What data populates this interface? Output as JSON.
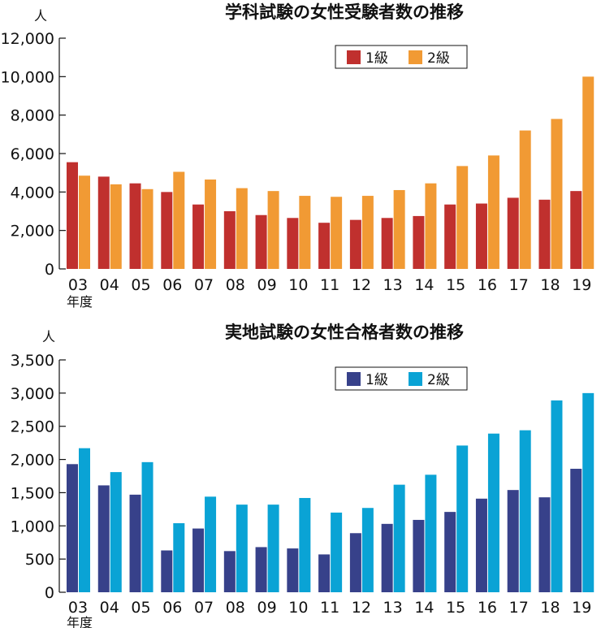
{
  "chart_data": [
    {
      "type": "bar",
      "title": "学科試験の女性受験者数の推移",
      "ylabel": "人",
      "xlabel": "年度",
      "ylim": [
        0,
        12000
      ],
      "yticks": [
        "0",
        "2,000",
        "4,000",
        "6,000",
        "8,000",
        "10,000",
        "12,000"
      ],
      "ytick_values": [
        0,
        2000,
        4000,
        6000,
        8000,
        10000,
        12000
      ],
      "categories": [
        "03",
        "04",
        "05",
        "06",
        "07",
        "08",
        "09",
        "10",
        "11",
        "12",
        "13",
        "14",
        "15",
        "16",
        "17",
        "18",
        "19"
      ],
      "legend_position": "top-right",
      "series": [
        {
          "name": "1級",
          "color": "#c0302e",
          "values": [
            5550,
            4800,
            4450,
            4000,
            3350,
            3000,
            2800,
            2650,
            2400,
            2550,
            2650,
            2750,
            3350,
            3400,
            3700,
            3600,
            4050
          ]
        },
        {
          "name": "2級",
          "color": "#f19a34",
          "values": [
            4850,
            4400,
            4150,
            5050,
            4650,
            4200,
            4050,
            3800,
            3750,
            3800,
            4100,
            4450,
            5350,
            5900,
            7200,
            7800,
            10000
          ]
        }
      ]
    },
    {
      "type": "bar",
      "title": "実地試験の女性合格者数の推移",
      "ylabel": "人",
      "xlabel": "年度",
      "ylim": [
        0,
        3500
      ],
      "yticks": [
        "0",
        "500",
        "1,000",
        "1,500",
        "2,000",
        "2,500",
        "3,000",
        "3,500"
      ],
      "ytick_values": [
        0,
        500,
        1000,
        1500,
        2000,
        2500,
        3000,
        3500
      ],
      "categories": [
        "03",
        "04",
        "05",
        "06",
        "07",
        "08",
        "09",
        "10",
        "11",
        "12",
        "13",
        "14",
        "15",
        "16",
        "17",
        "18",
        "19"
      ],
      "legend_position": "top-right",
      "series": [
        {
          "name": "1級",
          "color": "#37418a",
          "values": [
            1930,
            1610,
            1470,
            630,
            960,
            620,
            680,
            660,
            570,
            890,
            1030,
            1090,
            1210,
            1410,
            1540,
            1430,
            1860
          ]
        },
        {
          "name": "2級",
          "color": "#0aa3d5",
          "values": [
            2170,
            1810,
            1960,
            1040,
            1440,
            1320,
            1320,
            1420,
            1200,
            1270,
            1620,
            1770,
            2210,
            2390,
            2440,
            2890,
            3000
          ]
        }
      ]
    }
  ]
}
